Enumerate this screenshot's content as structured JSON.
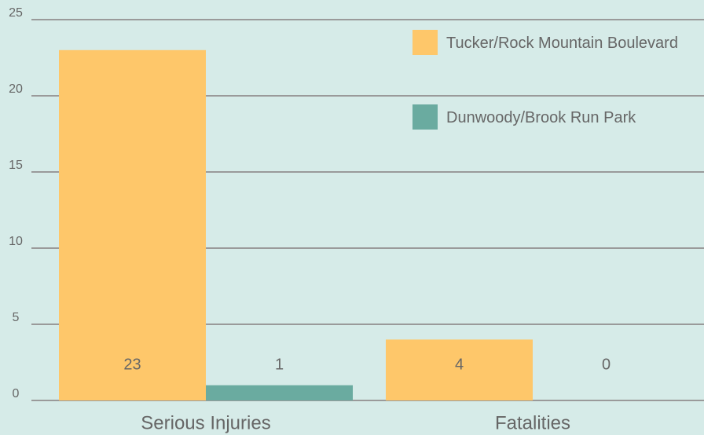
{
  "chart_data": {
    "type": "bar",
    "categories": [
      "Serious Injuries",
      "Fatalities"
    ],
    "series": [
      {
        "name": "Tucker/Rock Mountain Boulevard",
        "color": "#fec76a",
        "values": [
          23,
          4
        ]
      },
      {
        "name": "Dunwoody/Brook Run Park",
        "color": "#6aaba0",
        "values": [
          1,
          0
        ]
      }
    ],
    "ylim": [
      0,
      25
    ],
    "yticks": [
      0,
      5,
      10,
      15,
      20,
      25
    ],
    "grid": true,
    "legend": "top-right"
  }
}
